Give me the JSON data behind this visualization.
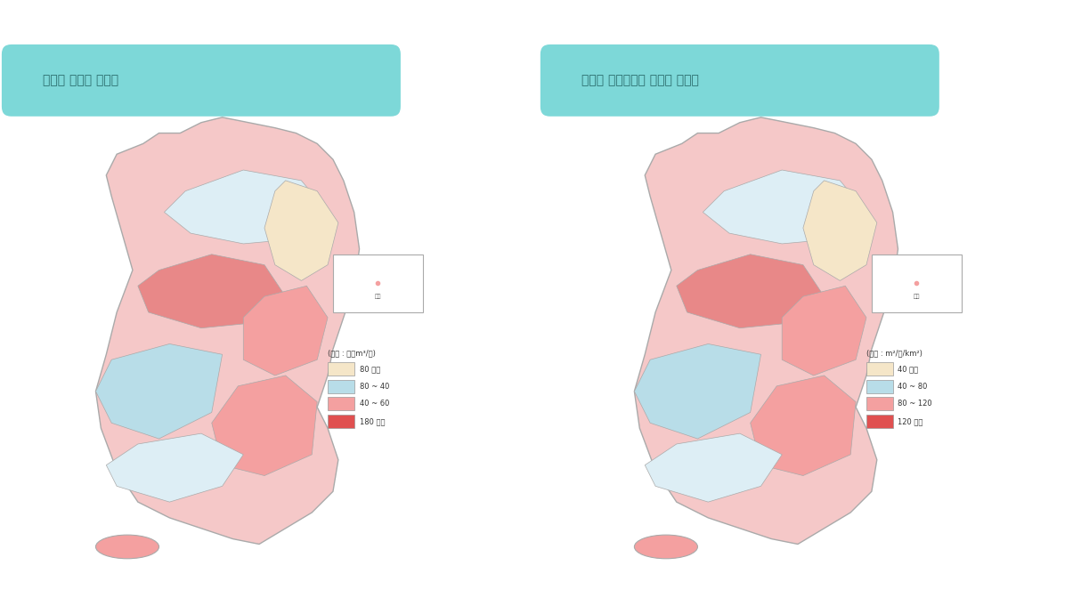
{
  "title_left": "유역별 지하수 이용량",
  "title_right": "유역별 단위면적당 지하수 이용량",
  "bg_color": "#ffffff",
  "title_bg_color": "#7dd8d8",
  "title_text_color": "#2a6b6b",
  "legend_left": {
    "unit": "(단위 : 백만m³/년)",
    "items": [
      {
        "label": "80 미만",
        "color": "#f5e6c8"
      },
      {
        "label": "80 ~ 40",
        "color": "#b8dde8"
      },
      {
        "label": "40 ~ 60",
        "color": "#f4a0a0"
      },
      {
        "label": "180 이상",
        "color": "#e05050"
      }
    ]
  },
  "legend_right": {
    "unit": "(단위 : m²/일/km²)",
    "items": [
      {
        "label": "40 미만",
        "color": "#f5e6c8"
      },
      {
        "label": "40 ~ 80",
        "color": "#b8dde8"
      },
      {
        "label": "80 ~ 120",
        "color": "#f4a0a0"
      },
      {
        "label": "120 이상",
        "color": "#e05050"
      }
    ]
  },
  "map_placeholder_color": "#e8d5b0",
  "map_outline_color": "#888888"
}
